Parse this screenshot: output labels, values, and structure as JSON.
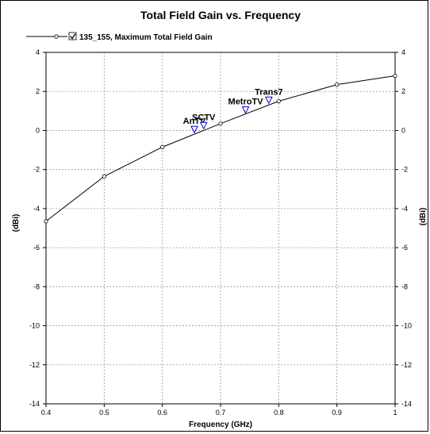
{
  "chart_data": {
    "type": "line",
    "title": "Total Field Gain vs. Frequency",
    "xlabel": "Frequency (GHz)",
    "ylabel": "(dBi)",
    "ylabel_right": "(dBi)",
    "xlim": [
      0.4,
      1.0
    ],
    "ylim": [
      -14,
      4
    ],
    "x_ticks": [
      "0.4",
      "0.5",
      "0.6",
      "0.7",
      "0.8",
      "0.9",
      "1"
    ],
    "y_ticks": [
      "-14",
      "-12",
      "-10",
      "-8",
      "-6",
      "-4",
      "-2",
      "0",
      "2",
      "4"
    ],
    "y_tick_values": [
      -14,
      -12,
      -10,
      -8,
      -6,
      -4,
      -2,
      0,
      2,
      4
    ],
    "x_tick_values": [
      0.4,
      0.5,
      0.6,
      0.7,
      0.8,
      0.9,
      1.0
    ],
    "grid": true,
    "legend_position": "top-left",
    "series": [
      {
        "name": "135_155, Maximum Total Field Gain",
        "color": "#000000",
        "x": [
          0.4,
          0.5,
          0.6,
          0.7,
          0.8,
          0.9,
          1.0
        ],
        "y": [
          -4.65,
          -2.35,
          -0.85,
          0.35,
          1.5,
          2.35,
          2.8
        ]
      }
    ],
    "markers": [
      {
        "label": "AnTV",
        "x": 0.655,
        "y": 0.05,
        "color": "#0000cc"
      },
      {
        "label": "SCTV",
        "x": 0.671,
        "y": 0.25,
        "color": "#0000cc"
      },
      {
        "label": "MetroTV",
        "x": 0.743,
        "y": 1.05,
        "color": "#0000cc"
      },
      {
        "label": "Trans7",
        "x": 0.783,
        "y": 1.55,
        "color": "#0000cc"
      }
    ]
  }
}
